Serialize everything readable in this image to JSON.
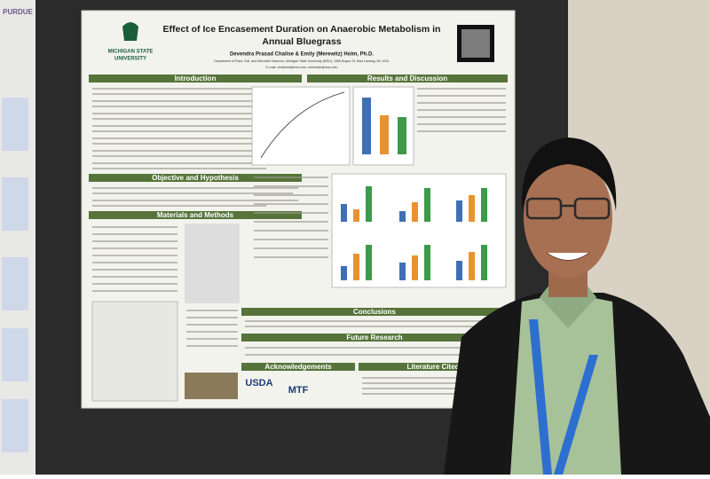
{
  "poster": {
    "title_lines": [
      "Effect of Ice Encasement Duration on Anaerobic Metabolism in",
      "Annual Bluegrass"
    ],
    "authors": "Devendra Prasad Chalise & Emily (Merewitz) Holm, Ph.D.",
    "affiliation": "Department of Plant, Soil, and Microbial Sciences, Michigan State University (MSU), 1066 Bogue St, East Lansing, MI, USA.",
    "email": "E-mail: chalised@msu.edu; merewitz@msu.edu",
    "logo_lines": [
      "MICHIGAN STATE",
      "UNIVERSITY"
    ],
    "sections": [
      "Introduction",
      "Objective and Hypothesis",
      "Materials and Methods",
      "Results and Discussion",
      "Conclusions",
      "Future Research",
      "Acknowledgements",
      "Literature Cited"
    ],
    "sponsors": [
      "USDA",
      "MTF"
    ]
  },
  "neighbor_poster": {
    "logo": "PURDUE"
  }
}
